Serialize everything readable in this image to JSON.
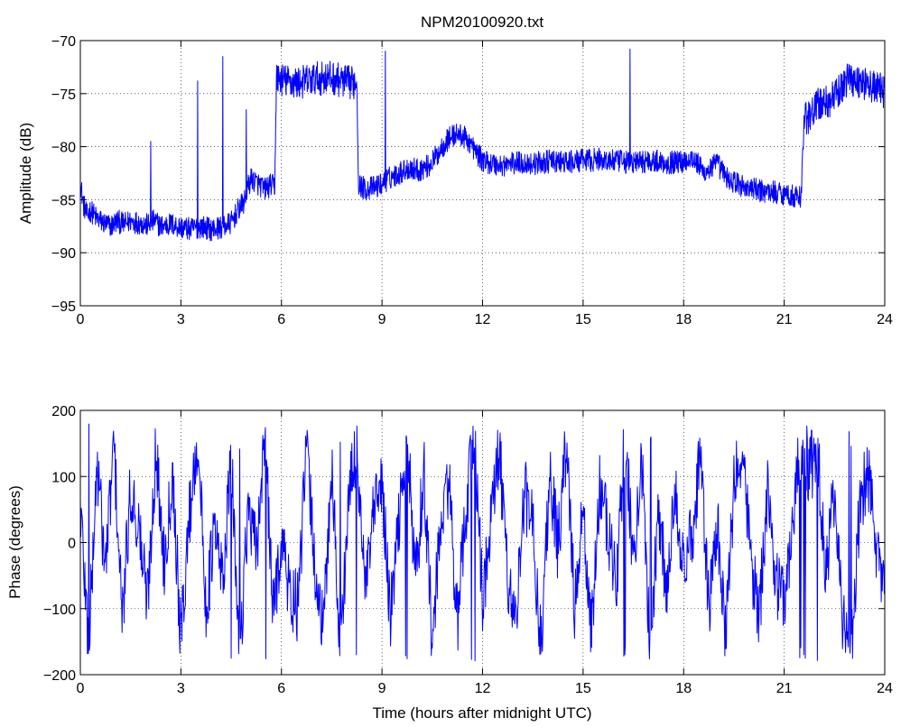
{
  "chart_data": [
    {
      "type": "line",
      "title": "NPM20100920.txt",
      "xlabel": "",
      "ylabel": "Amplitude (dB)",
      "xlim": [
        0,
        24
      ],
      "ylim": [
        -95,
        -70
      ],
      "xticks": [
        0,
        3,
        6,
        9,
        12,
        15,
        18,
        21,
        24
      ],
      "yticks": [
        -95,
        -90,
        -85,
        -80,
        -75,
        -70
      ],
      "xtick_labels": [
        "0",
        "3",
        "6",
        "9",
        "12",
        "15",
        "18",
        "21",
        "24"
      ],
      "ytick_labels": [
        "−95",
        "−90",
        "−85",
        "−80",
        "−75",
        "−70"
      ],
      "grid": true,
      "color": "#0000ff",
      "series": [
        {
          "x": [
            0.0,
            0.1,
            0.2,
            0.3,
            0.5,
            0.7,
            0.9,
            1.1,
            1.3,
            1.5,
            1.8,
            2.0,
            2.2,
            2.4,
            2.7,
            3.0,
            3.3,
            3.6,
            3.9,
            4.2,
            4.5,
            4.7,
            4.9,
            5.0,
            5.1,
            5.3,
            5.5,
            5.7,
            5.8,
            5.85,
            6.1,
            6.5,
            7.0,
            7.5,
            7.8,
            8.1,
            8.25,
            8.3,
            8.5,
            8.8,
            9.0,
            9.2,
            9.5,
            9.8,
            10.1,
            10.4,
            10.6,
            10.8,
            11.0,
            11.2,
            11.4,
            11.6,
            11.8,
            12.0,
            12.5,
            13.0,
            13.5,
            14.0,
            14.5,
            15.0,
            15.5,
            16.0,
            16.5,
            17.0,
            17.5,
            18.0,
            18.2,
            18.4,
            18.6,
            18.8,
            19.0,
            19.3,
            19.6,
            20.0,
            20.4,
            20.8,
            21.1,
            21.4,
            21.5,
            21.6,
            21.8,
            22.0,
            22.3,
            22.6,
            22.9,
            23.2,
            23.5,
            23.8,
            24.0
          ],
          "y": [
            -83.5,
            -85.5,
            -86.5,
            -86.0,
            -86.8,
            -87.2,
            -87.5,
            -87.0,
            -87.3,
            -87.0,
            -87.2,
            -87.4,
            -87.0,
            -87.5,
            -87.3,
            -87.6,
            -87.8,
            -87.5,
            -87.8,
            -87.6,
            -87.2,
            -86.0,
            -85.2,
            -83.8,
            -83.0,
            -83.5,
            -84.0,
            -83.6,
            -83.8,
            -73.5,
            -73.8,
            -74.0,
            -73.6,
            -73.5,
            -73.8,
            -74.0,
            -73.8,
            -83.5,
            -84.0,
            -83.8,
            -83.5,
            -83.0,
            -82.5,
            -82.0,
            -82.2,
            -81.8,
            -81.0,
            -80.0,
            -79.2,
            -78.8,
            -79.0,
            -79.5,
            -80.5,
            -81.3,
            -81.8,
            -81.5,
            -81.6,
            -81.4,
            -81.5,
            -81.3,
            -81.2,
            -81.4,
            -81.5,
            -81.3,
            -81.5,
            -81.4,
            -81.0,
            -81.5,
            -82.5,
            -82.0,
            -81.6,
            -83.0,
            -83.5,
            -84.0,
            -84.2,
            -84.3,
            -84.5,
            -84.8,
            -84.6,
            -77.5,
            -77.0,
            -76.0,
            -75.8,
            -75.0,
            -73.5,
            -73.8,
            -74.2,
            -74.5,
            -74.8
          ],
          "spikes": [
            {
              "x": 2.1,
              "y": -79.5
            },
            {
              "x": 3.5,
              "y": -73.8
            },
            {
              "x": 4.25,
              "y": -71.5
            },
            {
              "x": 4.95,
              "y": -76.5
            },
            {
              "x": 9.1,
              "y": -71.0
            },
            {
              "x": 16.4,
              "y": -70.8
            }
          ]
        }
      ]
    },
    {
      "type": "line",
      "title": "",
      "xlabel": "Time (hours after midnight UTC)",
      "ylabel": "Phase (degrees)",
      "xlim": [
        0,
        24
      ],
      "ylim": [
        -200,
        200
      ],
      "xticks": [
        0,
        3,
        6,
        9,
        12,
        15,
        18,
        21,
        24
      ],
      "yticks": [
        -200,
        -100,
        0,
        100,
        200
      ],
      "xtick_labels": [
        "0",
        "3",
        "6",
        "9",
        "12",
        "15",
        "18",
        "21",
        "24"
      ],
      "ytick_labels": [
        "−200",
        "−100",
        "0",
        "100",
        "200"
      ],
      "grid": true,
      "color": "#0000ff",
      "phase_wrap": [
        -180,
        180
      ],
      "series": [
        {
          "x": [
            0.0,
            0.25,
            0.5,
            0.75,
            1.0,
            1.25,
            1.5,
            1.75,
            2.0,
            2.25,
            2.5,
            2.75,
            3.0,
            3.25,
            3.5,
            3.75,
            4.0,
            4.25,
            4.5,
            4.75,
            5.0,
            5.25,
            5.5,
            5.75,
            6.0,
            6.25,
            6.5,
            6.75,
            7.0,
            7.25,
            7.5,
            7.75,
            8.0,
            8.25,
            8.5,
            8.75,
            9.0,
            9.25,
            9.5,
            9.75,
            10.0,
            10.25,
            10.5,
            10.75,
            11.0,
            11.25,
            11.5,
            11.75,
            12.0,
            12.25,
            12.5,
            12.75,
            13.0,
            13.25,
            13.5,
            13.75,
            14.0,
            14.25,
            14.5,
            14.75,
            15.0,
            15.25,
            15.5,
            15.75,
            16.0,
            16.25,
            16.5,
            16.75,
            17.0,
            17.25,
            17.5,
            17.75,
            18.0,
            18.25,
            18.5,
            18.75,
            19.0,
            19.25,
            19.5,
            19.75,
            20.0,
            20.25,
            20.5,
            20.75,
            21.0,
            21.25,
            21.5,
            21.75,
            22.0,
            22.25,
            22.5,
            22.75,
            23.0,
            23.25,
            23.5,
            23.75,
            24.0
          ],
          "y": [
            60,
            -160,
            120,
            -40,
            150,
            -120,
            80,
            20,
            -90,
            140,
            -30,
            110,
            -150,
            40,
            160,
            -100,
            20,
            -60,
            130,
            -170,
            50,
            -20,
            170,
            -110,
            10,
            -80,
            -100,
            150,
            -40,
            -140,
            120,
            -170,
            60,
            150,
            -80,
            40,
            90,
            -120,
            30,
            160,
            -60,
            110,
            -150,
            20,
            100,
            -130,
            50,
            170,
            -90,
            30,
            140,
            -50,
            -120,
            80,
            20,
            -160,
            110,
            -10,
            150,
            -100,
            40,
            -140,
            90,
            10,
            -60,
            170,
            -30,
            120,
            -170,
            60,
            -90,
            100,
            -50,
            10,
            140,
            -110,
            30,
            -150,
            80,
            150,
            -20,
            -120,
            90,
            -60,
            -80,
            20,
            160,
            110,
            130,
            -40,
            80,
            -120,
            -160,
            50,
            110,
            -20,
            -80
          ]
        }
      ]
    }
  ]
}
